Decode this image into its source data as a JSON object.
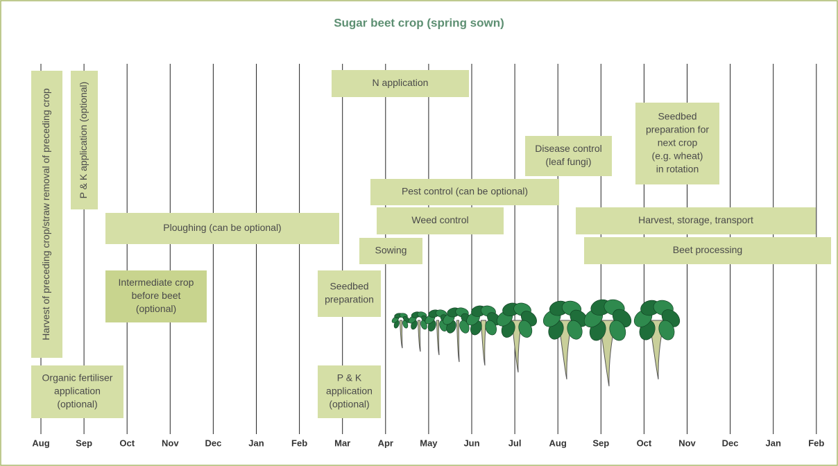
{
  "title": "Sugar beet crop (spring sown)",
  "months": [
    "Aug",
    "Sep",
    "Oct",
    "Nov",
    "Dec",
    "Jan",
    "Feb",
    "Mar",
    "Apr",
    "May",
    "Jun",
    "Jul",
    "Aug",
    "Sep",
    "Oct",
    "Nov",
    "Dec",
    "Jan",
    "Feb"
  ],
  "activities": [
    {
      "lines": [
        "N application"
      ]
    },
    {
      "lines": [
        "Harvest of preceding crop/straw removal of preceding crop"
      ]
    },
    {
      "lines": [
        "P & K  application (optional)"
      ]
    },
    {
      "lines": [
        "Seedbed",
        "preparation for",
        "next crop",
        "(e.g. wheat)",
        "in rotation"
      ]
    },
    {
      "lines": [
        "Disease control",
        "(leaf fungi)"
      ]
    },
    {
      "lines": [
        "Pest control (can be optional)"
      ]
    },
    {
      "lines": [
        "Ploughing (can be optional)"
      ]
    },
    {
      "lines": [
        "Weed control"
      ]
    },
    {
      "lines": [
        "Harvest, storage, transport"
      ]
    },
    {
      "lines": [
        "Sowing"
      ]
    },
    {
      "lines": [
        "Beet processing"
      ]
    },
    {
      "lines": [
        "Intermediate crop",
        "before beet",
        "(optional)"
      ]
    },
    {
      "lines": [
        "Seedbed",
        "preparation"
      ]
    },
    {
      "lines": [
        "Organic fertiliser",
        "application",
        "(optional)"
      ]
    },
    {
      "lines": [
        "P & K",
        "application",
        "(optional)"
      ]
    }
  ]
}
